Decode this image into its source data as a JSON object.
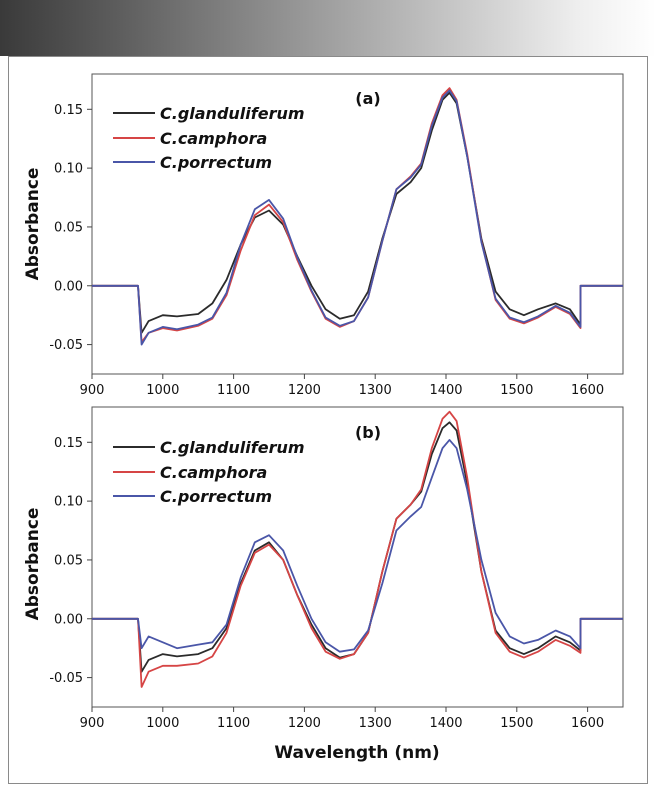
{
  "chart_data": [
    {
      "type": "line",
      "panel_label": "(a)",
      "ylabel": "Absorbance",
      "xlabel": "",
      "xlim": [
        900,
        1650
      ],
      "ylim": [
        -0.075,
        0.18
      ],
      "x_ticks": [
        900,
        1000,
        1100,
        1200,
        1300,
        1400,
        1500,
        1600
      ],
      "y_ticks": [
        -0.05,
        0.0,
        0.05,
        0.1,
        0.15
      ],
      "y_tick_labels": [
        "-0.05",
        "0.00",
        "0.05",
        "0.10",
        "0.15"
      ],
      "legend_position": "top-left",
      "series": [
        {
          "name": "C.glanduliferum",
          "color": "#2b2b2b",
          "x": [
            900,
            965,
            970,
            980,
            1000,
            1020,
            1050,
            1070,
            1090,
            1110,
            1130,
            1150,
            1170,
            1190,
            1210,
            1230,
            1250,
            1270,
            1290,
            1310,
            1330,
            1350,
            1365,
            1380,
            1395,
            1405,
            1415,
            1430,
            1450,
            1470,
            1490,
            1510,
            1530,
            1555,
            1575,
            1590,
            1590,
            1650
          ],
          "y": [
            0,
            0,
            -0.04,
            -0.03,
            -0.025,
            -0.026,
            -0.024,
            -0.015,
            0.005,
            0.035,
            0.058,
            0.064,
            0.052,
            0.025,
            0.0,
            -0.02,
            -0.028,
            -0.025,
            -0.005,
            0.04,
            0.078,
            0.088,
            0.1,
            0.132,
            0.158,
            0.164,
            0.155,
            0.11,
            0.04,
            -0.005,
            -0.02,
            -0.025,
            -0.02,
            -0.015,
            -0.02,
            -0.033,
            0,
            0
          ]
        },
        {
          "name": "C.camphora",
          "color": "#d64545",
          "x": [
            900,
            965,
            970,
            980,
            1000,
            1020,
            1050,
            1070,
            1090,
            1110,
            1130,
            1150,
            1170,
            1190,
            1210,
            1230,
            1250,
            1270,
            1290,
            1310,
            1330,
            1350,
            1365,
            1380,
            1395,
            1405,
            1415,
            1430,
            1450,
            1470,
            1490,
            1510,
            1530,
            1555,
            1575,
            1590,
            1590,
            1650
          ],
          "y": [
            0,
            0,
            -0.048,
            -0.04,
            -0.036,
            -0.038,
            -0.034,
            -0.028,
            -0.008,
            0.03,
            0.06,
            0.069,
            0.054,
            0.022,
            -0.005,
            -0.028,
            -0.035,
            -0.03,
            -0.01,
            0.038,
            0.082,
            0.093,
            0.104,
            0.138,
            0.162,
            0.168,
            0.158,
            0.112,
            0.038,
            -0.012,
            -0.028,
            -0.032,
            -0.027,
            -0.018,
            -0.024,
            -0.036,
            0,
            0
          ]
        },
        {
          "name": "C.porrectum",
          "color": "#4a56a8",
          "x": [
            900,
            965,
            970,
            980,
            1000,
            1020,
            1050,
            1070,
            1090,
            1110,
            1130,
            1150,
            1170,
            1190,
            1210,
            1230,
            1250,
            1270,
            1290,
            1310,
            1330,
            1350,
            1365,
            1380,
            1395,
            1405,
            1415,
            1430,
            1450,
            1470,
            1490,
            1510,
            1530,
            1555,
            1575,
            1590,
            1590,
            1650
          ],
          "y": [
            0,
            0,
            -0.05,
            -0.04,
            -0.035,
            -0.037,
            -0.033,
            -0.027,
            -0.006,
            0.035,
            0.065,
            0.073,
            0.057,
            0.024,
            -0.004,
            -0.027,
            -0.034,
            -0.03,
            -0.01,
            0.038,
            0.082,
            0.092,
            0.103,
            0.136,
            0.16,
            0.166,
            0.157,
            0.11,
            0.037,
            -0.011,
            -0.027,
            -0.031,
            -0.026,
            -0.017,
            -0.023,
            -0.035,
            0,
            0
          ]
        }
      ]
    },
    {
      "type": "line",
      "panel_label": "(b)",
      "ylabel": "Absorbance",
      "xlabel": "Wavelength (nm)",
      "xlim": [
        900,
        1650
      ],
      "ylim": [
        -0.075,
        0.18
      ],
      "x_ticks": [
        900,
        1000,
        1100,
        1200,
        1300,
        1400,
        1500,
        1600
      ],
      "y_ticks": [
        -0.05,
        0.0,
        0.05,
        0.1,
        0.15
      ],
      "y_tick_labels": [
        "-0.05",
        "0.00",
        "0.05",
        "0.10",
        "0.15"
      ],
      "legend_position": "top-left",
      "series": [
        {
          "name": "C.glanduliferum",
          "color": "#2b2b2b",
          "x": [
            900,
            965,
            970,
            980,
            1000,
            1020,
            1050,
            1070,
            1090,
            1110,
            1130,
            1150,
            1170,
            1190,
            1210,
            1230,
            1250,
            1270,
            1290,
            1310,
            1330,
            1350,
            1365,
            1380,
            1395,
            1405,
            1415,
            1430,
            1450,
            1470,
            1490,
            1510,
            1530,
            1555,
            1575,
            1590,
            1590,
            1650
          ],
          "y": [
            0,
            0,
            -0.045,
            -0.035,
            -0.03,
            -0.032,
            -0.03,
            -0.025,
            -0.008,
            0.03,
            0.058,
            0.065,
            0.05,
            0.02,
            -0.005,
            -0.025,
            -0.033,
            -0.03,
            -0.012,
            0.04,
            0.085,
            0.097,
            0.108,
            0.14,
            0.162,
            0.167,
            0.16,
            0.115,
            0.04,
            -0.01,
            -0.025,
            -0.03,
            -0.025,
            -0.015,
            -0.02,
            -0.027,
            0,
            0
          ]
        },
        {
          "name": "C.camphora",
          "color": "#d64545",
          "x": [
            900,
            965,
            970,
            980,
            1000,
            1020,
            1050,
            1070,
            1090,
            1110,
            1130,
            1150,
            1170,
            1190,
            1210,
            1230,
            1250,
            1270,
            1290,
            1310,
            1330,
            1350,
            1365,
            1380,
            1395,
            1405,
            1415,
            1430,
            1450,
            1470,
            1490,
            1510,
            1530,
            1555,
            1575,
            1590,
            1590,
            1650
          ],
          "y": [
            0,
            0,
            -0.058,
            -0.045,
            -0.04,
            -0.04,
            -0.038,
            -0.032,
            -0.012,
            0.028,
            0.056,
            0.063,
            0.05,
            0.02,
            -0.008,
            -0.028,
            -0.034,
            -0.03,
            -0.012,
            0.04,
            0.085,
            0.097,
            0.11,
            0.145,
            0.17,
            0.176,
            0.168,
            0.12,
            0.04,
            -0.012,
            -0.028,
            -0.033,
            -0.028,
            -0.018,
            -0.023,
            -0.029,
            0,
            0
          ]
        },
        {
          "name": "C.porrectum",
          "color": "#4a56a8",
          "x": [
            900,
            965,
            970,
            980,
            1000,
            1020,
            1050,
            1070,
            1090,
            1110,
            1130,
            1150,
            1170,
            1190,
            1210,
            1230,
            1250,
            1270,
            1290,
            1310,
            1330,
            1350,
            1365,
            1380,
            1395,
            1405,
            1415,
            1430,
            1450,
            1470,
            1490,
            1510,
            1530,
            1555,
            1575,
            1590,
            1590,
            1650
          ],
          "y": [
            0,
            0,
            -0.025,
            -0.015,
            -0.02,
            -0.025,
            -0.022,
            -0.02,
            -0.005,
            0.035,
            0.065,
            0.071,
            0.058,
            0.028,
            0.0,
            -0.02,
            -0.028,
            -0.026,
            -0.01,
            0.03,
            0.075,
            0.087,
            0.095,
            0.12,
            0.145,
            0.152,
            0.145,
            0.11,
            0.05,
            0.005,
            -0.015,
            -0.021,
            -0.018,
            -0.01,
            -0.015,
            -0.025,
            0,
            0
          ]
        }
      ]
    }
  ]
}
